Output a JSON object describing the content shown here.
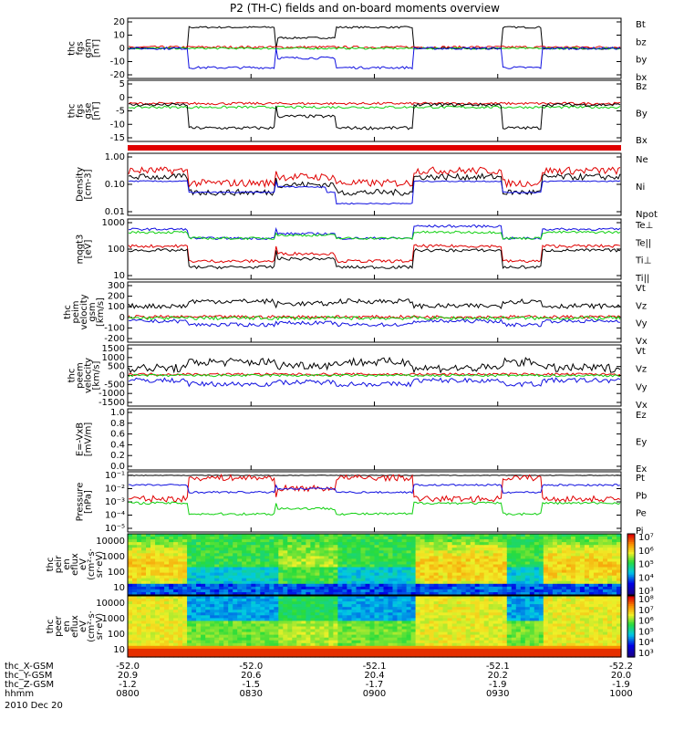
{
  "title": "P2 (TH-C) fields and on-board moments overview",
  "colors": {
    "black": "#000000",
    "red": "#e00000",
    "green": "#10d010",
    "blue": "#1010e0"
  },
  "chart_data": {
    "type": "line",
    "date": "2010 Dec 20",
    "panels": [
      {
        "id": "fgs-gsm",
        "ylabel": [
          "thc",
          "fgs",
          "gsm",
          "[nT]"
        ],
        "yticks": [
          "20",
          "10",
          "0",
          "-10",
          "-20"
        ],
        "ylim": [
          -20,
          20
        ],
        "log": false,
        "legend": [
          {
            "name": "Bt",
            "color": "black"
          },
          {
            "name": "bz",
            "color": "red"
          },
          {
            "name": "by",
            "color": "green"
          },
          {
            "name": "bx",
            "color": "blue"
          }
        ]
      },
      {
        "id": "fgs-gse",
        "ylabel": [
          "thc",
          "fgs",
          "gse",
          "[nT]"
        ],
        "yticks": [
          "5",
          "0",
          "-5",
          "-10",
          "-15"
        ],
        "ylim": [
          -18,
          10
        ],
        "log": false,
        "legend": [
          {
            "name": "Bz",
            "color": "red"
          },
          {
            "name": "By",
            "color": "green"
          },
          {
            "name": "Bx",
            "color": "black"
          }
        ]
      },
      {
        "id": "density",
        "ylabel": [
          "Density",
          "[cm-3]"
        ],
        "yticks": [
          "1.00",
          "0.10",
          "0.01"
        ],
        "ylim": [
          0.01,
          1
        ],
        "log": true,
        "legend": [
          {
            "name": "Ne",
            "color": "red"
          },
          {
            "name": "Ni",
            "color": "black"
          },
          {
            "name": "Npot",
            "color": "blue"
          }
        ]
      },
      {
        "id": "temperature",
        "ylabel": [
          "mqgt3",
          "[eV]"
        ],
        "yticks": [
          "1000",
          "100",
          "10"
        ],
        "ylim": [
          10,
          5000
        ],
        "log": true,
        "legend": [
          {
            "name": "Te⊥",
            "color": "red"
          },
          {
            "name": "Te||",
            "color": "black"
          },
          {
            "name": "Ti⊥",
            "color": "green"
          },
          {
            "name": "Ti||",
            "color": "green"
          }
        ]
      },
      {
        "id": "peim-velocity",
        "ylabel": [
          "thc",
          "peim",
          "velocity",
          "gsm",
          "[km/s]"
        ],
        "yticks": [
          "300",
          "200",
          "100",
          "0",
          "-100",
          "-200"
        ],
        "ylim": [
          -200,
          300
        ],
        "log": false,
        "legend": [
          {
            "name": "Vt",
            "color": "black"
          },
          {
            "name": "Vz",
            "color": "red"
          },
          {
            "name": "Vy",
            "color": "green"
          },
          {
            "name": "Vx",
            "color": "blue"
          }
        ]
      },
      {
        "id": "peem-velocity",
        "ylabel": [
          "thc",
          "peem",
          "velocity",
          "[km/s]"
        ],
        "yticks": [
          "1500",
          "1000",
          "500",
          "0",
          "-500",
          "-1000",
          "-1500"
        ],
        "ylim": [
          -1500,
          1500
        ],
        "log": false,
        "legend": [
          {
            "name": "Vt",
            "color": "black"
          },
          {
            "name": "Vz",
            "color": "red"
          },
          {
            "name": "Vy",
            "color": "green"
          },
          {
            "name": "Vx",
            "color": "blue"
          }
        ]
      },
      {
        "id": "efield",
        "ylabel": [
          "E=-VxB",
          "[mV/m]"
        ],
        "yticks": [
          "1.0",
          "0.8",
          "0.6",
          "0.4",
          "0.2",
          "0.0"
        ],
        "ylim": [
          0,
          1
        ],
        "log": false,
        "legend": [
          {
            "name": "Ez",
            "color": "red"
          },
          {
            "name": "Ey",
            "color": "green"
          },
          {
            "name": "Ex",
            "color": "blue"
          }
        ]
      },
      {
        "id": "pressure",
        "ylabel": [
          "Pressure",
          "[nPa]"
        ],
        "yticks": [
          "10⁻¹",
          "10⁻²",
          "10⁻³",
          "10⁻⁴",
          "10⁻⁵"
        ],
        "ylim": [
          1e-05,
          0.1
        ],
        "log": true,
        "legend": [
          {
            "name": "Pt",
            "color": "black"
          },
          {
            "name": "Pb",
            "color": "red"
          },
          {
            "name": "Pe",
            "color": "green"
          },
          {
            "name": "Pi",
            "color": "blue"
          }
        ]
      }
    ],
    "spectrograms": [
      {
        "id": "peir-spec",
        "ylabel": [
          "thc",
          "peir",
          "en",
          "eflux",
          "eV",
          "(cm²·s·",
          "sr·eV)"
        ],
        "yticks": [
          "10000",
          "1000",
          "100",
          "10"
        ],
        "cbticks": [
          "10⁷",
          "10⁶",
          "10⁵",
          "10⁴",
          "10³"
        ]
      },
      {
        "id": "peer-spec",
        "ylabel": [
          "thc",
          "peer",
          "en",
          "eflux",
          "eV",
          "(cm²·s·",
          "sr·eV)"
        ],
        "yticks": [
          "10000",
          "1000",
          "100",
          "10"
        ],
        "cbticks": [
          "10⁸",
          "10⁷",
          "10⁶",
          "10⁵",
          "10⁴",
          "10³"
        ]
      }
    ],
    "xaxis": {
      "rows": [
        {
          "label": "thc_X-GSM",
          "values": [
            "-52.0",
            "-52.0",
            "-52.1",
            "-52.1",
            "-52.2"
          ]
        },
        {
          "label": "thc_Y-GSM",
          "values": [
            "20.9",
            "20.6",
            "20.4",
            "20.2",
            "20.0"
          ]
        },
        {
          "label": "thc_Z-GSM",
          "values": [
            "-1.2",
            "-1.5",
            "-1.7",
            "-1.9",
            "-1.9"
          ]
        },
        {
          "label": "hhmm",
          "values": [
            "0800",
            "0830",
            "0900",
            "0930",
            "1000"
          ]
        }
      ]
    }
  }
}
